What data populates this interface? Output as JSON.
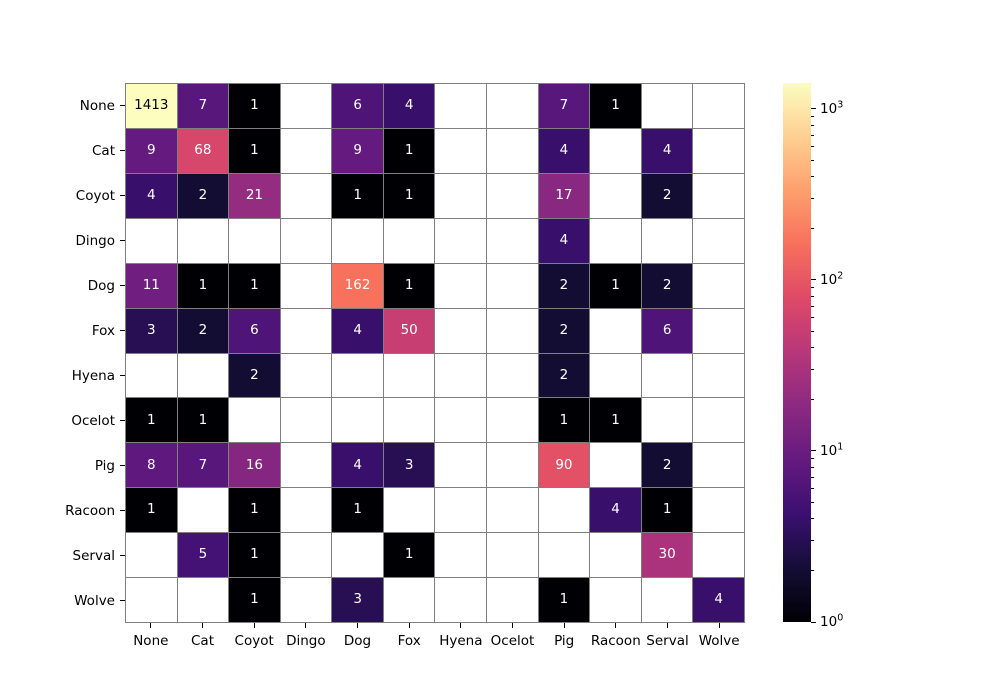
{
  "figure": {
    "background": "#ffffff",
    "title": ""
  },
  "chart_data": {
    "type": "heatmap",
    "title": "",
    "xlabel": "",
    "ylabel": "",
    "x_categories": [
      "None",
      "Cat",
      "Coyot",
      "Dingo",
      "Dog",
      "Fox",
      "Hyena",
      "Ocelot",
      "Pig",
      "Racoon",
      "Serval",
      "Wolve"
    ],
    "y_categories": [
      "None",
      "Cat",
      "Coyot",
      "Dingo",
      "Dog",
      "Fox",
      "Hyena",
      "Ocelot",
      "Pig",
      "Racoon",
      "Serval",
      "Wolve"
    ],
    "matrix": [
      [
        1413,
        7,
        1,
        null,
        6,
        4,
        null,
        null,
        7,
        1,
        null,
        null
      ],
      [
        9,
        68,
        1,
        null,
        9,
        1,
        null,
        null,
        4,
        null,
        4,
        null
      ],
      [
        4,
        2,
        21,
        null,
        1,
        1,
        null,
        null,
        17,
        null,
        2,
        null
      ],
      [
        null,
        null,
        null,
        null,
        null,
        null,
        null,
        null,
        4,
        null,
        null,
        null
      ],
      [
        11,
        1,
        1,
        null,
        162,
        1,
        null,
        null,
        2,
        1,
        2,
        null
      ],
      [
        3,
        2,
        6,
        null,
        4,
        50,
        null,
        null,
        2,
        null,
        6,
        null
      ],
      [
        null,
        null,
        2,
        null,
        null,
        null,
        null,
        null,
        2,
        null,
        null,
        null
      ],
      [
        1,
        1,
        null,
        null,
        null,
        null,
        null,
        null,
        1,
        1,
        null,
        null
      ],
      [
        8,
        7,
        16,
        null,
        4,
        3,
        null,
        null,
        90,
        null,
        2,
        null
      ],
      [
        1,
        null,
        1,
        null,
        1,
        null,
        null,
        null,
        null,
        4,
        1,
        null
      ],
      [
        null,
        5,
        1,
        null,
        null,
        1,
        null,
        null,
        null,
        null,
        30,
        null
      ],
      [
        null,
        null,
        1,
        null,
        3,
        null,
        null,
        null,
        1,
        null,
        null,
        4
      ]
    ],
    "scale": "log",
    "vmin": 1,
    "vmax": 1413,
    "grid": true,
    "grid_color": "#7f7f7f",
    "empty_cell_color": "#ffffff",
    "annotation_color_dark": "#000000",
    "annotation_color_light": "#ffffff",
    "colormap": {
      "name": "magma",
      "stops": [
        "#000004",
        "#140e36",
        "#3b0f70",
        "#641a80",
        "#8c2981",
        "#b73779",
        "#de4968",
        "#f7705c",
        "#fe9f6d",
        "#fecf92",
        "#fcfdbf"
      ]
    },
    "colorbar": {
      "position": "right",
      "scale": "log",
      "major_ticks": [
        {
          "base": "10",
          "exp": "0",
          "value": 1
        },
        {
          "base": "10",
          "exp": "1",
          "value": 10
        },
        {
          "base": "10",
          "exp": "2",
          "value": 100
        },
        {
          "base": "10",
          "exp": "3",
          "value": 1000
        }
      ],
      "minor_ticks_per_decade": [
        2,
        3,
        4,
        5,
        6,
        7,
        8,
        9
      ]
    }
  }
}
